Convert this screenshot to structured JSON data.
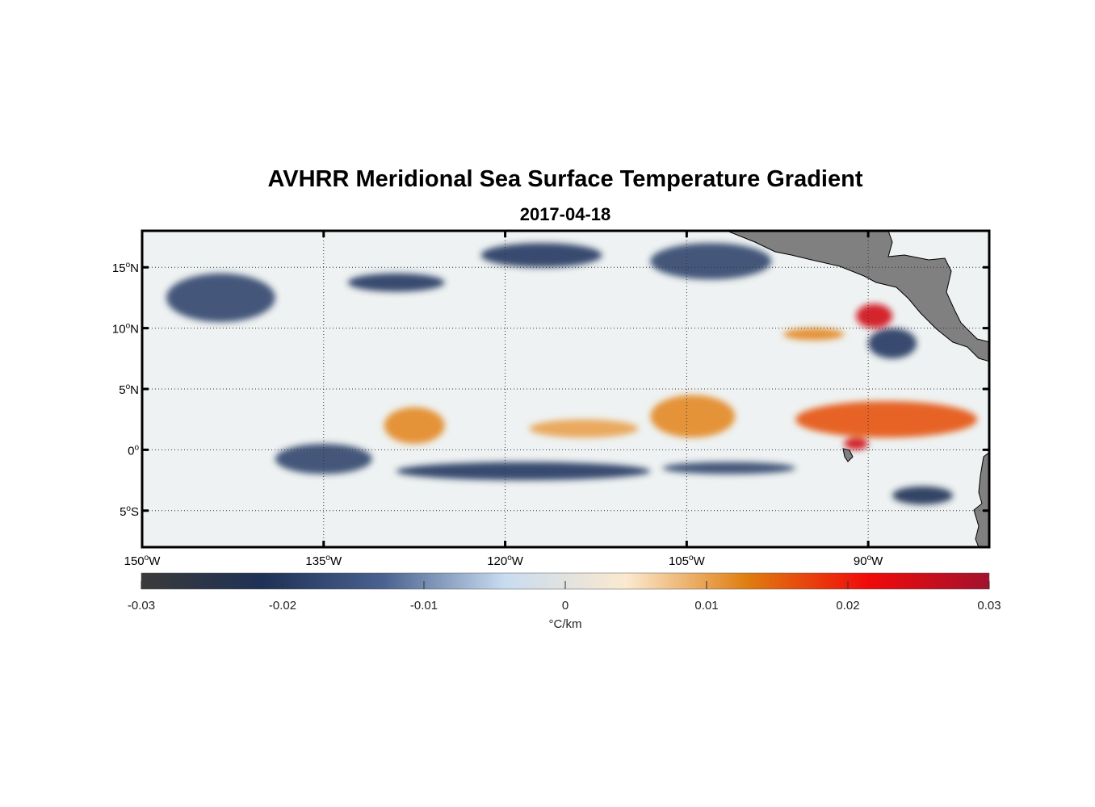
{
  "title": "AVHRR Meridional Sea Surface Temperature Gradient",
  "subtitle": "2017-04-18",
  "map": {
    "lon_range": [
      -150,
      -80
    ],
    "lat_range": [
      -8,
      18
    ],
    "lon_ticks": [
      {
        "value": -150,
        "deg": "150",
        "hemi": "W"
      },
      {
        "value": -135,
        "deg": "135",
        "hemi": "W"
      },
      {
        "value": -120,
        "deg": "120",
        "hemi": "W"
      },
      {
        "value": -105,
        "deg": "105",
        "hemi": "W"
      },
      {
        "value": -90,
        "deg": "90",
        "hemi": "W"
      }
    ],
    "lat_ticks": [
      {
        "value": 15,
        "deg": "15",
        "hemi": "N"
      },
      {
        "value": 10,
        "deg": "10",
        "hemi": "N"
      },
      {
        "value": 5,
        "deg": "5",
        "hemi": "N"
      },
      {
        "value": 0,
        "deg": "0",
        "hemi": ""
      },
      {
        "value": -5,
        "deg": "5",
        "hemi": "S"
      }
    ],
    "grid": true,
    "land_color": "#808080",
    "features": [
      {
        "kind": "negative",
        "lon": [
          -148,
          -139
        ],
        "lat": [
          10.5,
          14.5
        ],
        "strength": -0.018
      },
      {
        "kind": "negative",
        "lon": [
          -133,
          -125
        ],
        "lat": [
          13,
          14.5
        ],
        "strength": -0.02
      },
      {
        "kind": "negative",
        "lon": [
          -122,
          -112
        ],
        "lat": [
          15,
          17
        ],
        "strength": -0.02
      },
      {
        "kind": "negative",
        "lon": [
          -108,
          -98
        ],
        "lat": [
          14,
          17
        ],
        "strength": -0.018
      },
      {
        "kind": "negative",
        "lon": [
          -139,
          -131
        ],
        "lat": [
          -2,
          0.5
        ],
        "strength": -0.018
      },
      {
        "kind": "negative",
        "lon": [
          -129,
          -108
        ],
        "lat": [
          -2.5,
          -1
        ],
        "strength": -0.02
      },
      {
        "kind": "negative",
        "lon": [
          -107,
          -96
        ],
        "lat": [
          -2,
          -1
        ],
        "strength": -0.018
      },
      {
        "kind": "negative",
        "lon": [
          -88,
          -83
        ],
        "lat": [
          -4.5,
          -3
        ],
        "strength": -0.022
      },
      {
        "kind": "negative",
        "lon": [
          -90,
          -86
        ],
        "lat": [
          7.5,
          10
        ],
        "strength": -0.02
      },
      {
        "kind": "positive",
        "lon": [
          -130,
          -125
        ],
        "lat": [
          0.5,
          3.5
        ],
        "strength": 0.012
      },
      {
        "kind": "positive",
        "lon": [
          -118,
          -109
        ],
        "lat": [
          1,
          2.5
        ],
        "strength": 0.01
      },
      {
        "kind": "positive",
        "lon": [
          -108,
          -101
        ],
        "lat": [
          1,
          4.5
        ],
        "strength": 0.012
      },
      {
        "kind": "positive",
        "lon": [
          -96,
          -81
        ],
        "lat": [
          1,
          4
        ],
        "strength": 0.016
      },
      {
        "kind": "positive",
        "lon": [
          -91,
          -88
        ],
        "lat": [
          10,
          12
        ],
        "strength": 0.025
      },
      {
        "kind": "positive",
        "lon": [
          -97,
          -92
        ],
        "lat": [
          9,
          10
        ],
        "strength": 0.012
      },
      {
        "kind": "positive",
        "lon": [
          -92,
          -90
        ],
        "lat": [
          0,
          1
        ],
        "strength": 0.025
      }
    ]
  },
  "colorbar": {
    "min": -0.03,
    "max": 0.03,
    "ticks": [
      "-0.03",
      "-0.02",
      "-0.01",
      "0",
      "0.01",
      "0.02",
      "0.03"
    ],
    "label": "°C/km",
    "colors": [
      "#3a3a3a",
      "#1e3156",
      "#4a6290",
      "#c8dcf0",
      "#fbe9cf",
      "#e07d10",
      "#f00a0a",
      "#a3122e"
    ]
  }
}
